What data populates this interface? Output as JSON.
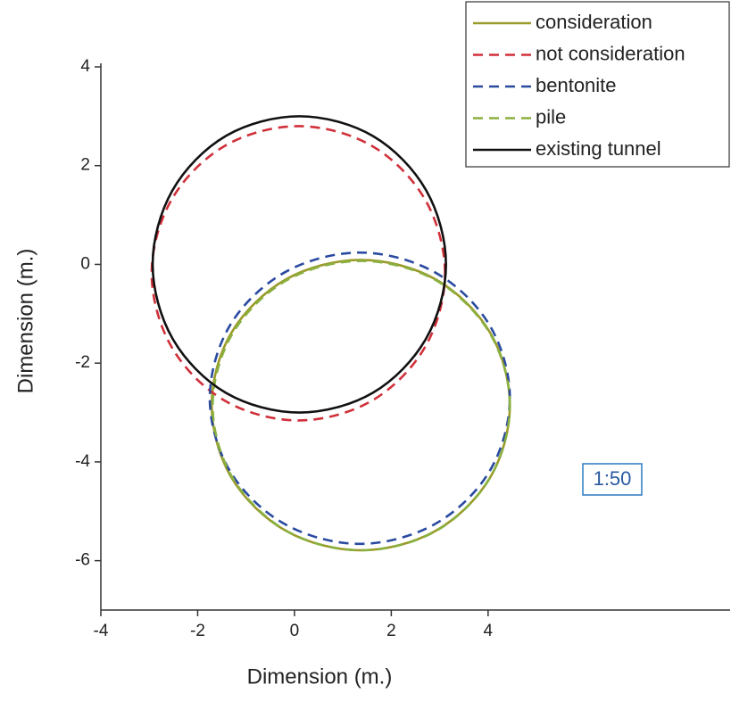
{
  "chart_data": {
    "type": "line",
    "xlabel": "Dimension (m.)",
    "ylabel": "Dimension (m.)",
    "xlim": [
      -4,
      9
    ],
    "ylim": [
      -7,
      4
    ],
    "xticks": [
      -4,
      -2,
      0,
      2,
      4
    ],
    "yticks": [
      -6,
      -4,
      -2,
      0,
      2,
      4
    ],
    "annotation": "1:50",
    "legend": "top-right",
    "series": [
      {
        "name": "consideration",
        "color": "#9a9a2a",
        "dash": false,
        "x": [
          4.45,
          4.04,
          2.91,
          1.37,
          -0.17,
          -1.3,
          -1.71,
          -1.3,
          -0.17,
          1.37,
          2.91,
          4.04,
          4.45
        ],
        "y": [
          -2.85,
          -1.38,
          -0.3,
          0.09,
          -0.3,
          -1.38,
          -2.85,
          -4.32,
          -5.4,
          -5.79,
          -5.4,
          -4.32,
          -2.85
        ]
      },
      {
        "name": "not consideration",
        "color": "#d0303a",
        "dash": true,
        "x": [
          3.11,
          2.7,
          1.6,
          0.08,
          -1.44,
          -2.54,
          -2.95,
          -2.54,
          -1.44,
          0.08,
          1.6,
          2.7,
          3.11
        ],
        "y": [
          -0.18,
          1.31,
          2.4,
          2.8,
          2.4,
          1.31,
          -0.18,
          -1.67,
          -2.76,
          -3.16,
          -2.76,
          -1.67,
          -0.18
        ]
      },
      {
        "name": "bentonite",
        "color": "#2a4aa0",
        "dash": true,
        "x": [
          4.45,
          4.03,
          2.9,
          1.35,
          -0.2,
          -1.33,
          -1.75,
          -1.33,
          -0.2,
          1.35,
          2.9,
          4.03,
          4.45
        ],
        "y": [
          -2.71,
          -1.23,
          -0.16,
          0.24,
          -0.16,
          -1.23,
          -2.71,
          -4.19,
          -5.26,
          -5.66,
          -5.26,
          -4.19,
          -2.71
        ]
      },
      {
        "name": "pile",
        "color": "#8ab040",
        "dash": true,
        "x": [
          4.45,
          4.04,
          2.92,
          1.38,
          -0.16,
          -1.28,
          -1.69,
          -1.28,
          -0.16,
          1.38,
          2.92,
          4.04,
          4.45
        ],
        "y": [
          -2.86,
          -1.4,
          -0.32,
          0.07,
          -0.32,
          -1.4,
          -2.86,
          -4.32,
          -5.4,
          -5.79,
          -5.4,
          -4.32,
          -2.86
        ]
      },
      {
        "name": "existing tunnel",
        "color": "#111111",
        "dash": false,
        "x": [
          3.13,
          2.72,
          1.62,
          0.1,
          -1.42,
          -2.52,
          -2.93,
          -2.52,
          -1.42,
          0.1,
          1.62,
          2.72,
          3.13
        ],
        "y": [
          0,
          1.5,
          2.6,
          3,
          2.6,
          1.5,
          0,
          -1.5,
          -2.6,
          -3,
          -2.6,
          -1.5,
          0
        ]
      }
    ]
  }
}
